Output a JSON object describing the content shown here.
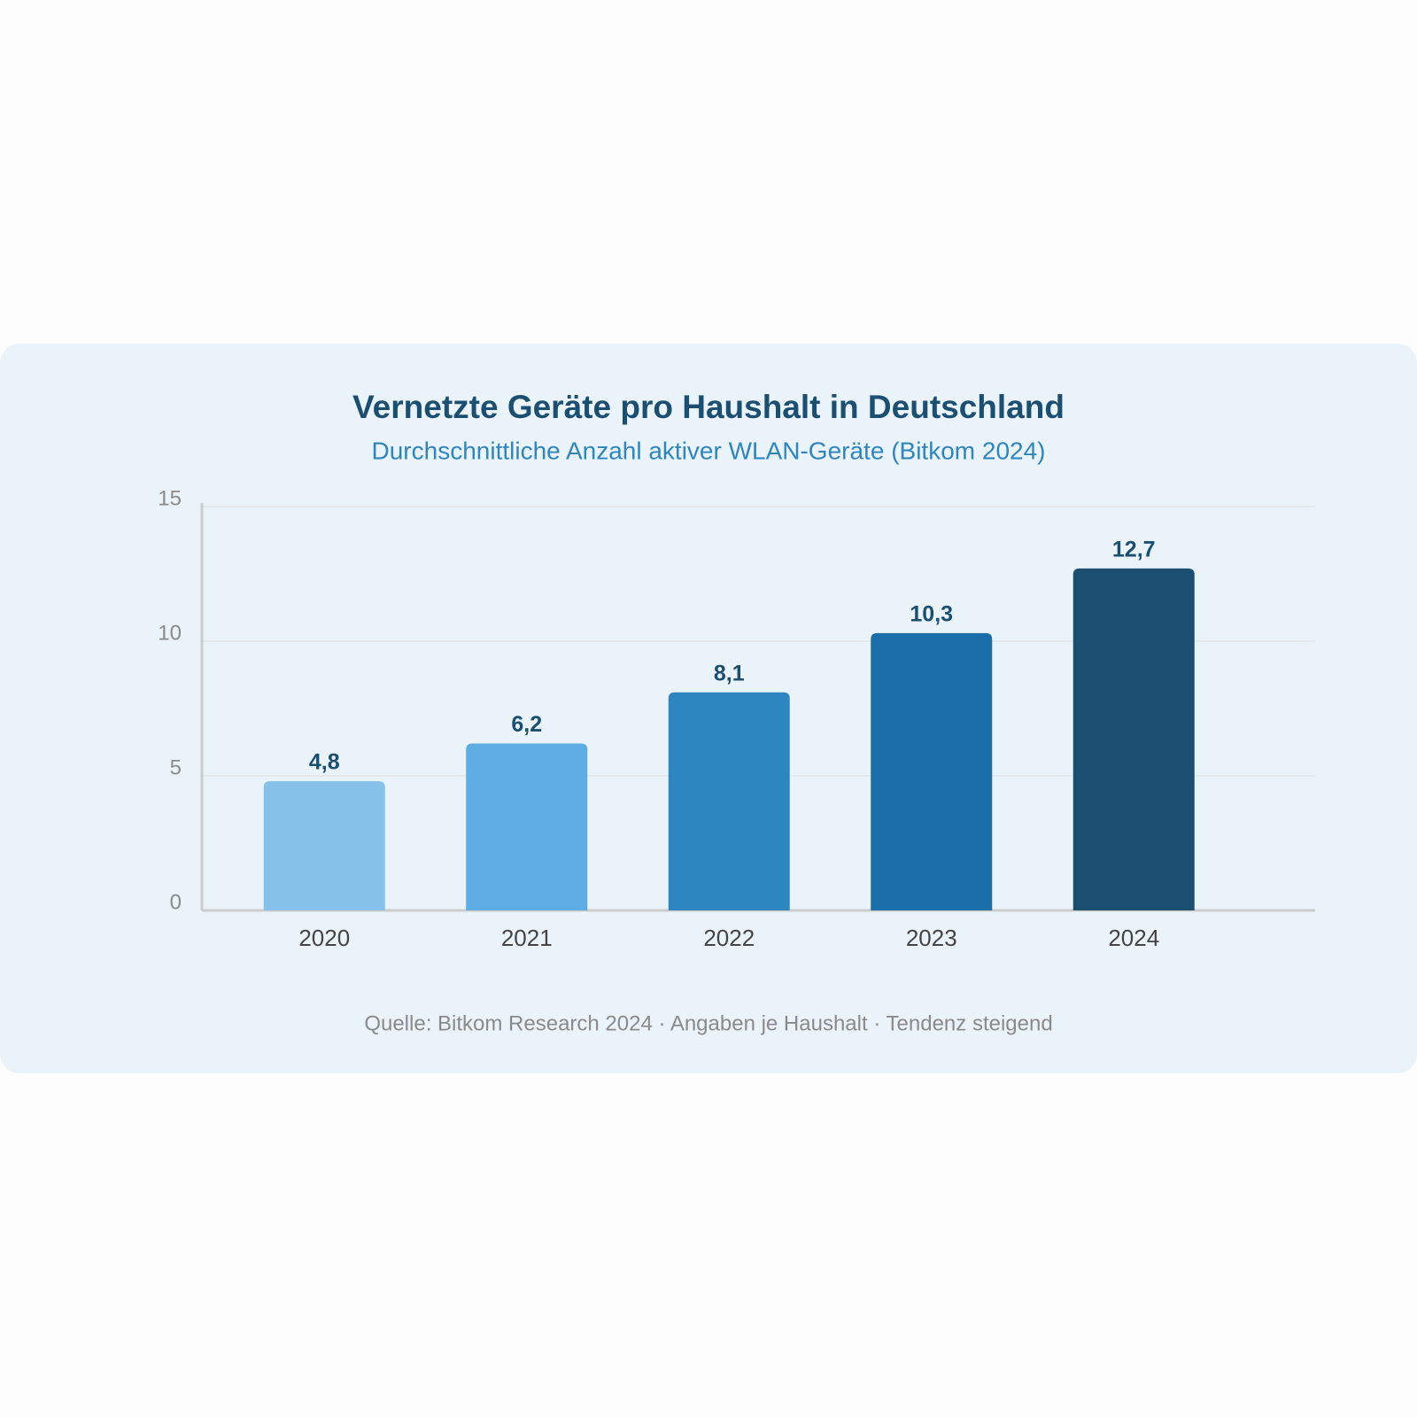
{
  "chart_data": {
    "type": "bar",
    "title": "Vernetzte Geräte pro Haushalt in Deutschland",
    "subtitle": "Durchschnittliche Anzahl aktiver WLAN-Geräte (Bitkom 2024)",
    "categories": [
      "2020",
      "2021",
      "2022",
      "2023",
      "2024"
    ],
    "values": [
      4.8,
      6.2,
      8.1,
      10.3,
      12.7
    ],
    "value_labels": [
      "4,8",
      "6,2",
      "8,1",
      "10,3",
      "12,7"
    ],
    "colors": [
      "#85c1e9",
      "#5dade2",
      "#2e86c1",
      "#1b6fa8",
      "#1b4f72"
    ],
    "ylim": [
      0,
      15
    ],
    "yticks": [
      0,
      5,
      10,
      15
    ],
    "grid": true,
    "note": "Quelle: Bitkom Research 2024 · Angaben je Haushalt · Tendenz steigend"
  }
}
